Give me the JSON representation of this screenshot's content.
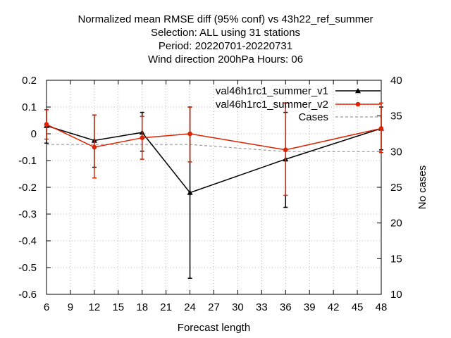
{
  "chart_data": {
    "type": "line",
    "title_lines": [
      "Normalized mean RMSE diff (95% conf) vs 43h22_ref_summer",
      "Selection: ALL using    31 stations",
      "Period: 20220701-20220731",
      "Wind direction 200hPa   Hours:  06"
    ],
    "xlabel": "Forecast length",
    "ylabel": "",
    "y2label": "No cases",
    "x_ticks": [
      6,
      9,
      12,
      15,
      18,
      21,
      24,
      27,
      30,
      33,
      36,
      39,
      42,
      45,
      48
    ],
    "y_ticks": [
      0.2,
      0.1,
      0,
      -0.1,
      -0.2,
      -0.3,
      -0.4,
      -0.5,
      -0.6
    ],
    "y_tick_labels": [
      "0.2",
      "0.1",
      "0",
      "-0.1",
      "-0.2",
      "-0.3",
      "-0.4",
      "-0.5",
      "-0.6"
    ],
    "y2_ticks": [
      40,
      35,
      30,
      25,
      20,
      15,
      10
    ],
    "xlim": [
      6,
      48
    ],
    "ylim": [
      -0.6,
      0.2
    ],
    "y2lim": [
      10,
      40
    ],
    "grid": true,
    "legend_position": "top-right",
    "x": [
      6,
      12,
      18,
      24,
      36,
      48
    ],
    "series": [
      {
        "name": "val46h1rc1_summer_v1",
        "color": "#000000",
        "marker": "triangle",
        "axis": "left",
        "values": [
          0.03,
          -0.025,
          0.005,
          -0.22,
          -0.095,
          0.02
        ],
        "err_low": [
          -0.035,
          -0.125,
          -0.065,
          -0.54,
          -0.275,
          -0.06
        ],
        "err_high": [
          0.09,
          0.07,
          0.08,
          0.1,
          0.08,
          0.1
        ]
      },
      {
        "name": "val46h1rc1_summer_v2",
        "color": "#dd2200",
        "marker": "circle",
        "axis": "left",
        "values": [
          0.035,
          -0.05,
          -0.015,
          0.0,
          -0.06,
          0.02
        ],
        "err_low": [
          -0.02,
          -0.165,
          -0.095,
          -0.105,
          -0.23,
          -0.07
        ],
        "err_high": [
          0.09,
          0.07,
          0.065,
          0.1,
          0.115,
          0.115
        ]
      },
      {
        "name": "Cases",
        "color": "#999999",
        "style": "dashed",
        "axis": "right",
        "values": [
          31,
          31,
          31,
          31,
          30,
          30
        ]
      }
    ]
  }
}
